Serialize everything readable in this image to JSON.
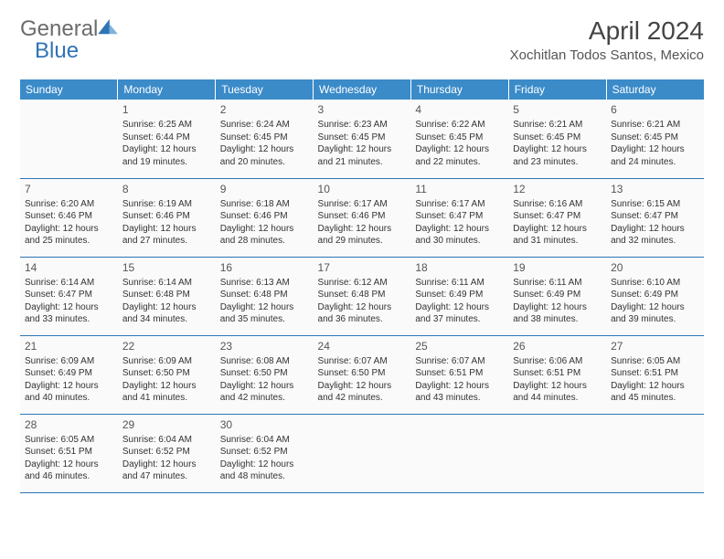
{
  "logo": {
    "word1": "General",
    "word2": "Blue"
  },
  "title": "April 2024",
  "location": "Xochitlan Todos Santos, Mexico",
  "colors": {
    "header_bg": "#3b8bc9",
    "header_text": "#ffffff",
    "border": "#2f74b5",
    "logo_gray": "#6b6b6b",
    "logo_blue": "#2f74b5",
    "text": "#333333",
    "cell_bg": "#fafafa"
  },
  "typography": {
    "title_fontsize": 28,
    "location_fontsize": 15,
    "dayheader_fontsize": 12,
    "daynum_fontsize": 12,
    "body_fontsize": 10
  },
  "day_headers": [
    "Sunday",
    "Monday",
    "Tuesday",
    "Wednesday",
    "Thursday",
    "Friday",
    "Saturday"
  ],
  "weeks": [
    [
      null,
      {
        "n": "1",
        "sunrise": "6:25 AM",
        "sunset": "6:44 PM",
        "dl1": "Daylight: 12 hours",
        "dl2": "and 19 minutes."
      },
      {
        "n": "2",
        "sunrise": "6:24 AM",
        "sunset": "6:45 PM",
        "dl1": "Daylight: 12 hours",
        "dl2": "and 20 minutes."
      },
      {
        "n": "3",
        "sunrise": "6:23 AM",
        "sunset": "6:45 PM",
        "dl1": "Daylight: 12 hours",
        "dl2": "and 21 minutes."
      },
      {
        "n": "4",
        "sunrise": "6:22 AM",
        "sunset": "6:45 PM",
        "dl1": "Daylight: 12 hours",
        "dl2": "and 22 minutes."
      },
      {
        "n": "5",
        "sunrise": "6:21 AM",
        "sunset": "6:45 PM",
        "dl1": "Daylight: 12 hours",
        "dl2": "and 23 minutes."
      },
      {
        "n": "6",
        "sunrise": "6:21 AM",
        "sunset": "6:45 PM",
        "dl1": "Daylight: 12 hours",
        "dl2": "and 24 minutes."
      }
    ],
    [
      {
        "n": "7",
        "sunrise": "6:20 AM",
        "sunset": "6:46 PM",
        "dl1": "Daylight: 12 hours",
        "dl2": "and 25 minutes."
      },
      {
        "n": "8",
        "sunrise": "6:19 AM",
        "sunset": "6:46 PM",
        "dl1": "Daylight: 12 hours",
        "dl2": "and 27 minutes."
      },
      {
        "n": "9",
        "sunrise": "6:18 AM",
        "sunset": "6:46 PM",
        "dl1": "Daylight: 12 hours",
        "dl2": "and 28 minutes."
      },
      {
        "n": "10",
        "sunrise": "6:17 AM",
        "sunset": "6:46 PM",
        "dl1": "Daylight: 12 hours",
        "dl2": "and 29 minutes."
      },
      {
        "n": "11",
        "sunrise": "6:17 AM",
        "sunset": "6:47 PM",
        "dl1": "Daylight: 12 hours",
        "dl2": "and 30 minutes."
      },
      {
        "n": "12",
        "sunrise": "6:16 AM",
        "sunset": "6:47 PM",
        "dl1": "Daylight: 12 hours",
        "dl2": "and 31 minutes."
      },
      {
        "n": "13",
        "sunrise": "6:15 AM",
        "sunset": "6:47 PM",
        "dl1": "Daylight: 12 hours",
        "dl2": "and 32 minutes."
      }
    ],
    [
      {
        "n": "14",
        "sunrise": "6:14 AM",
        "sunset": "6:47 PM",
        "dl1": "Daylight: 12 hours",
        "dl2": "and 33 minutes."
      },
      {
        "n": "15",
        "sunrise": "6:14 AM",
        "sunset": "6:48 PM",
        "dl1": "Daylight: 12 hours",
        "dl2": "and 34 minutes."
      },
      {
        "n": "16",
        "sunrise": "6:13 AM",
        "sunset": "6:48 PM",
        "dl1": "Daylight: 12 hours",
        "dl2": "and 35 minutes."
      },
      {
        "n": "17",
        "sunrise": "6:12 AM",
        "sunset": "6:48 PM",
        "dl1": "Daylight: 12 hours",
        "dl2": "and 36 minutes."
      },
      {
        "n": "18",
        "sunrise": "6:11 AM",
        "sunset": "6:49 PM",
        "dl1": "Daylight: 12 hours",
        "dl2": "and 37 minutes."
      },
      {
        "n": "19",
        "sunrise": "6:11 AM",
        "sunset": "6:49 PM",
        "dl1": "Daylight: 12 hours",
        "dl2": "and 38 minutes."
      },
      {
        "n": "20",
        "sunrise": "6:10 AM",
        "sunset": "6:49 PM",
        "dl1": "Daylight: 12 hours",
        "dl2": "and 39 minutes."
      }
    ],
    [
      {
        "n": "21",
        "sunrise": "6:09 AM",
        "sunset": "6:49 PM",
        "dl1": "Daylight: 12 hours",
        "dl2": "and 40 minutes."
      },
      {
        "n": "22",
        "sunrise": "6:09 AM",
        "sunset": "6:50 PM",
        "dl1": "Daylight: 12 hours",
        "dl2": "and 41 minutes."
      },
      {
        "n": "23",
        "sunrise": "6:08 AM",
        "sunset": "6:50 PM",
        "dl1": "Daylight: 12 hours",
        "dl2": "and 42 minutes."
      },
      {
        "n": "24",
        "sunrise": "6:07 AM",
        "sunset": "6:50 PM",
        "dl1": "Daylight: 12 hours",
        "dl2": "and 42 minutes."
      },
      {
        "n": "25",
        "sunrise": "6:07 AM",
        "sunset": "6:51 PM",
        "dl1": "Daylight: 12 hours",
        "dl2": "and 43 minutes."
      },
      {
        "n": "26",
        "sunrise": "6:06 AM",
        "sunset": "6:51 PM",
        "dl1": "Daylight: 12 hours",
        "dl2": "and 44 minutes."
      },
      {
        "n": "27",
        "sunrise": "6:05 AM",
        "sunset": "6:51 PM",
        "dl1": "Daylight: 12 hours",
        "dl2": "and 45 minutes."
      }
    ],
    [
      {
        "n": "28",
        "sunrise": "6:05 AM",
        "sunset": "6:51 PM",
        "dl1": "Daylight: 12 hours",
        "dl2": "and 46 minutes."
      },
      {
        "n": "29",
        "sunrise": "6:04 AM",
        "sunset": "6:52 PM",
        "dl1": "Daylight: 12 hours",
        "dl2": "and 47 minutes."
      },
      {
        "n": "30",
        "sunrise": "6:04 AM",
        "sunset": "6:52 PM",
        "dl1": "Daylight: 12 hours",
        "dl2": "and 48 minutes."
      },
      null,
      null,
      null,
      null
    ]
  ]
}
